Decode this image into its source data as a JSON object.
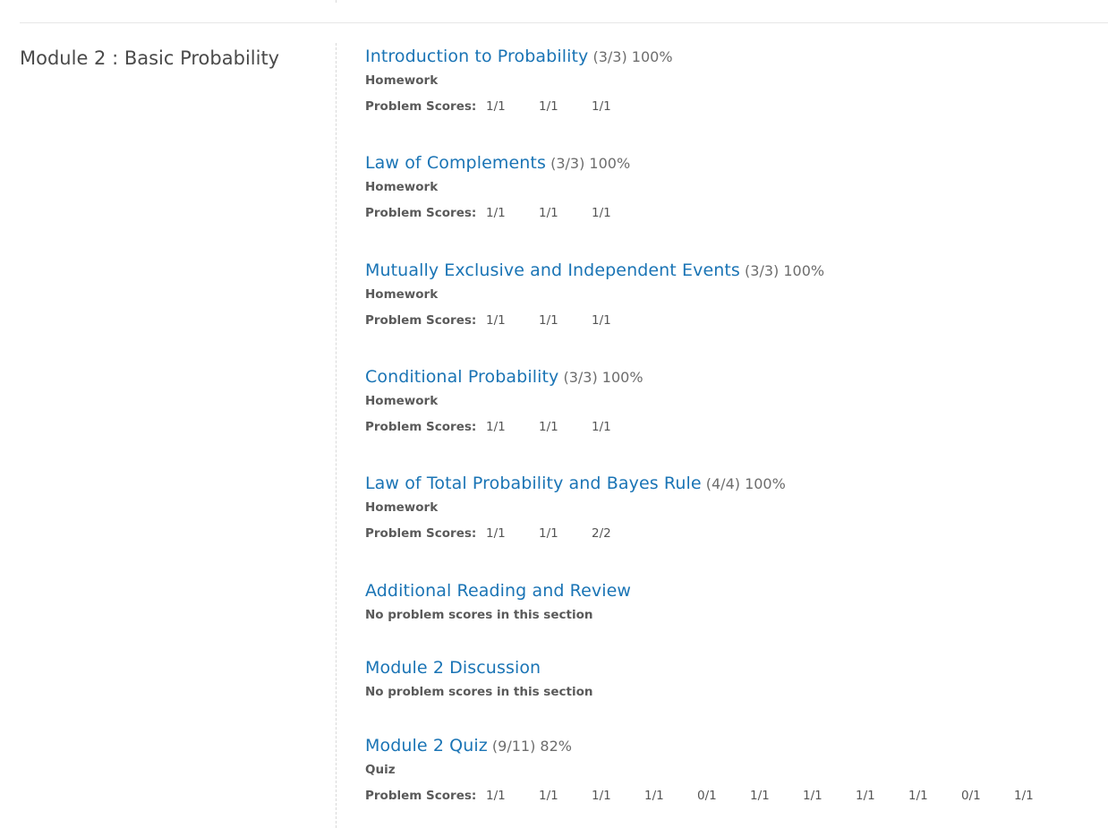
{
  "module": {
    "title": "Module 2 : Basic Probability"
  },
  "labels": {
    "problem_scores": "Problem Scores:",
    "no_scores": "No problem scores in this section"
  },
  "sections": [
    {
      "title": "Introduction to Probability",
      "score": "(3/3) 100%",
      "type": "Homework",
      "scores": [
        "1/1",
        "1/1",
        "1/1"
      ]
    },
    {
      "title": "Law of Complements",
      "score": "(3/3) 100%",
      "type": "Homework",
      "scores": [
        "1/1",
        "1/1",
        "1/1"
      ]
    },
    {
      "title": "Mutually Exclusive and Independent Events",
      "score": "(3/3) 100%",
      "type": "Homework",
      "scores": [
        "1/1",
        "1/1",
        "1/1"
      ]
    },
    {
      "title": "Conditional Probability",
      "score": "(3/3) 100%",
      "type": "Homework",
      "scores": [
        "1/1",
        "1/1",
        "1/1"
      ]
    },
    {
      "title": "Law of Total Probability and Bayes Rule",
      "score": "(4/4) 100%",
      "type": "Homework",
      "scores": [
        "1/1",
        "1/1",
        "2/2"
      ]
    },
    {
      "title": "Additional Reading and Review",
      "score": "",
      "type": "",
      "scores": []
    },
    {
      "title": "Module 2 Discussion",
      "score": "",
      "type": "",
      "scores": []
    },
    {
      "title": "Module 2 Quiz",
      "score": "(9/11) 82%",
      "type": "Quiz",
      "scores": [
        "1/1",
        "1/1",
        "1/1",
        "1/1",
        "0/1",
        "1/1",
        "1/1",
        "1/1",
        "1/1",
        "0/1",
        "1/1"
      ]
    }
  ],
  "colors": {
    "link": "#1a74b5",
    "text": "#4d4d4d"
  }
}
